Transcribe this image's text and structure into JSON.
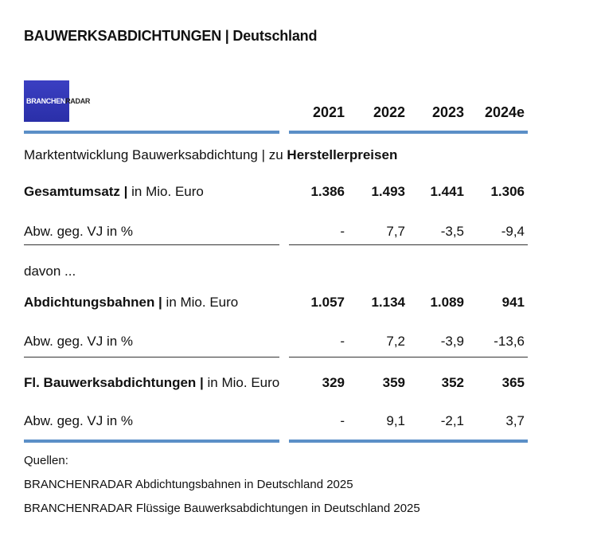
{
  "title": "BAUWERKSABDICHTUNGEN | Deutschland",
  "logo": {
    "part1": "BRANCHEN",
    "part2": "RADAR"
  },
  "years": [
    "2021",
    "2022",
    "2023",
    "2024e"
  ],
  "subtitle": {
    "prefix": "Marktentwicklung Bauwerksabdichtung | zu ",
    "bold": "Herstellerpreisen"
  },
  "rows": {
    "gesamt": {
      "label_bold": "Gesamtumsatz |",
      "label_unit": " in Mio. Euro",
      "values": [
        "1.386",
        "1.493",
        "1.441",
        "1.306"
      ]
    },
    "gesamt_abw": {
      "label": "Abw. geg. VJ in %",
      "values": [
        "-",
        "7,7",
        "-3,5",
        "-9,4"
      ]
    },
    "davon": "davon ...",
    "bahnen": {
      "label_bold": "Abdichtungsbahnen |",
      "label_unit": " in Mio. Euro",
      "values": [
        "1.057",
        "1.134",
        "1.089",
        "941"
      ]
    },
    "bahnen_abw": {
      "label": "Abw. geg. VJ in %",
      "values": [
        "-",
        "7,2",
        "-3,9",
        "-13,6"
      ]
    },
    "fl": {
      "label_bold": "Fl. Bauwerksabdichtungen |",
      "label_unit": " in Mio. Euro",
      "values": [
        "329",
        "359",
        "352",
        "365"
      ]
    },
    "fl_abw": {
      "label": "Abw. geg. VJ in %",
      "values": [
        "-",
        "9,1",
        "-2,1",
        "3,7"
      ]
    }
  },
  "sources": {
    "heading": "Quellen:",
    "items": [
      "BRANCHENRADAR Abdichtungsbahnen in Deutschland 2025",
      "BRANCHENRADAR Flüssige Bauwerksabdichtungen in Deutschland 2025"
    ]
  },
  "colors": {
    "accent_bar": "#5b8fc7",
    "logo_bg": "#2a2fa8"
  }
}
